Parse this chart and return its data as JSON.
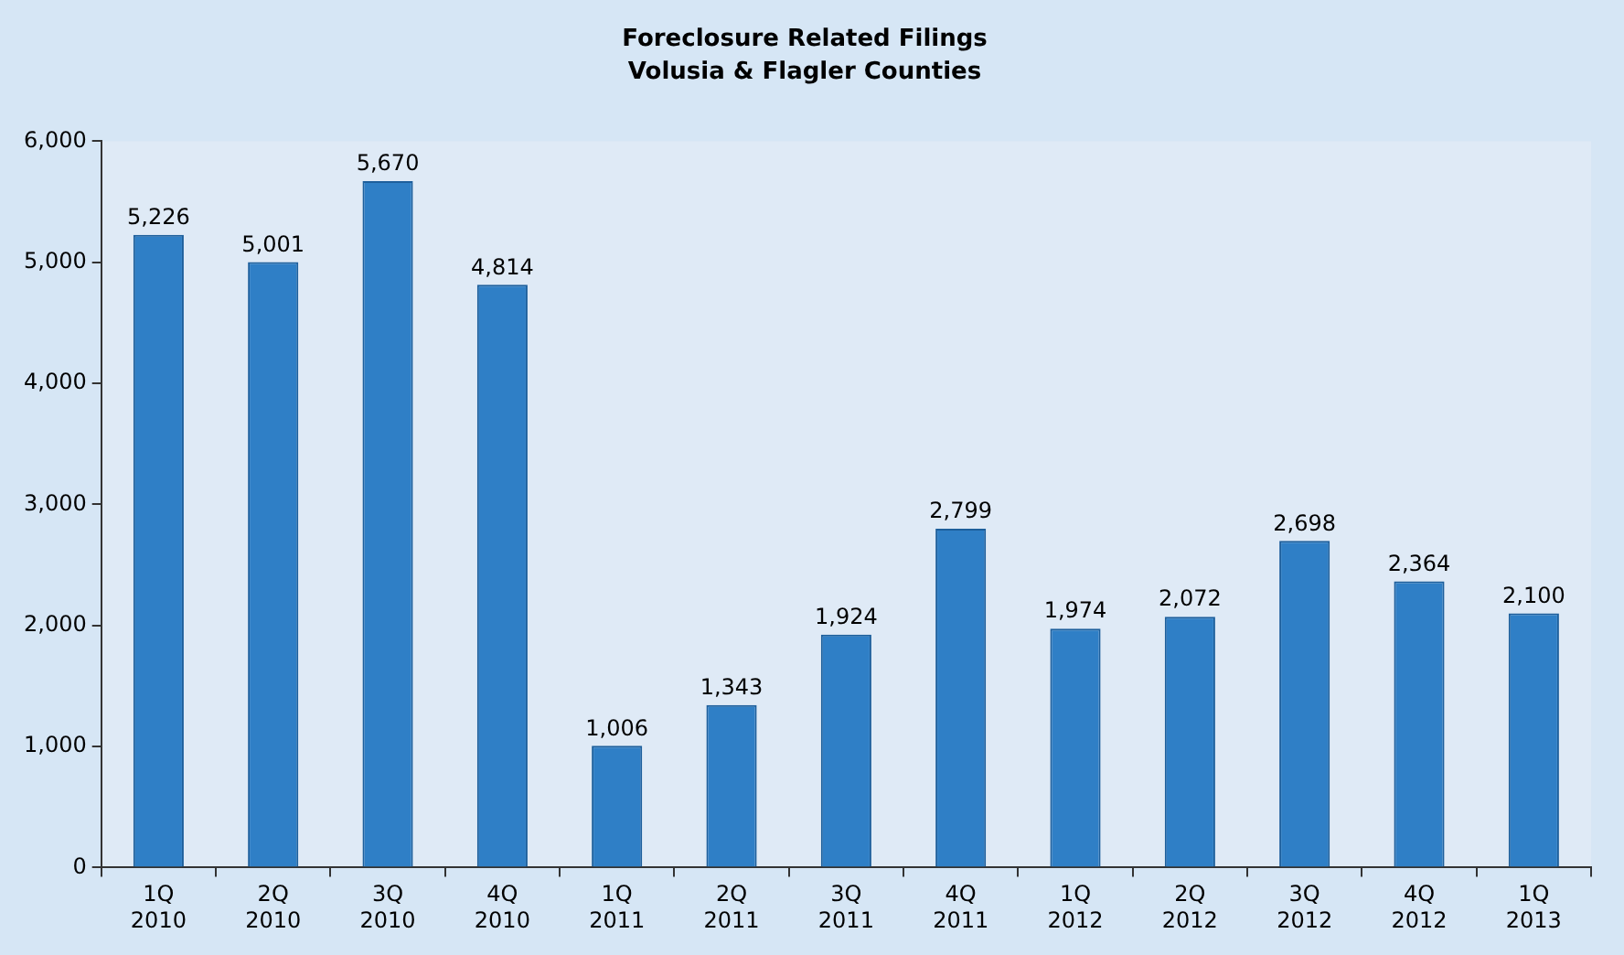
{
  "chart_data": {
    "type": "bar",
    "title": "Foreclosure Related Filings",
    "subtitle": "Volusia & Flagler Counties",
    "categories": [
      "1Q 2010",
      "2Q 2010",
      "3Q 2010",
      "4Q 2010",
      "1Q 2011",
      "2Q 2011",
      "3Q 2011",
      "4Q 2011",
      "1Q 2012",
      "2Q 2012",
      "3Q 2012",
      "4Q 2012",
      "1Q 2013"
    ],
    "values": [
      5226,
      5001,
      5670,
      4814,
      1006,
      1343,
      1924,
      2799,
      1974,
      2072,
      2698,
      2364,
      2100
    ],
    "color": "#2f7fc6",
    "ylim": [
      0,
      6000
    ],
    "yticks": [
      {
        "value": 0,
        "label": "0"
      },
      {
        "value": 1000,
        "label": "1,000"
      },
      {
        "value": 2000,
        "label": "2,000"
      },
      {
        "value": 3000,
        "label": "3,000"
      },
      {
        "value": 4000,
        "label": "4,000"
      },
      {
        "value": 5000,
        "label": "5,000"
      },
      {
        "value": 6000,
        "label": "6,000"
      }
    ],
    "value_labels": [
      "5,226",
      "5,001",
      "5,670",
      "4,814",
      "1,006",
      "1,343",
      "1,924",
      "2,799",
      "1,974",
      "2,072",
      "2,698",
      "2,364",
      "2,100"
    ],
    "grid": false,
    "legend": false
  }
}
